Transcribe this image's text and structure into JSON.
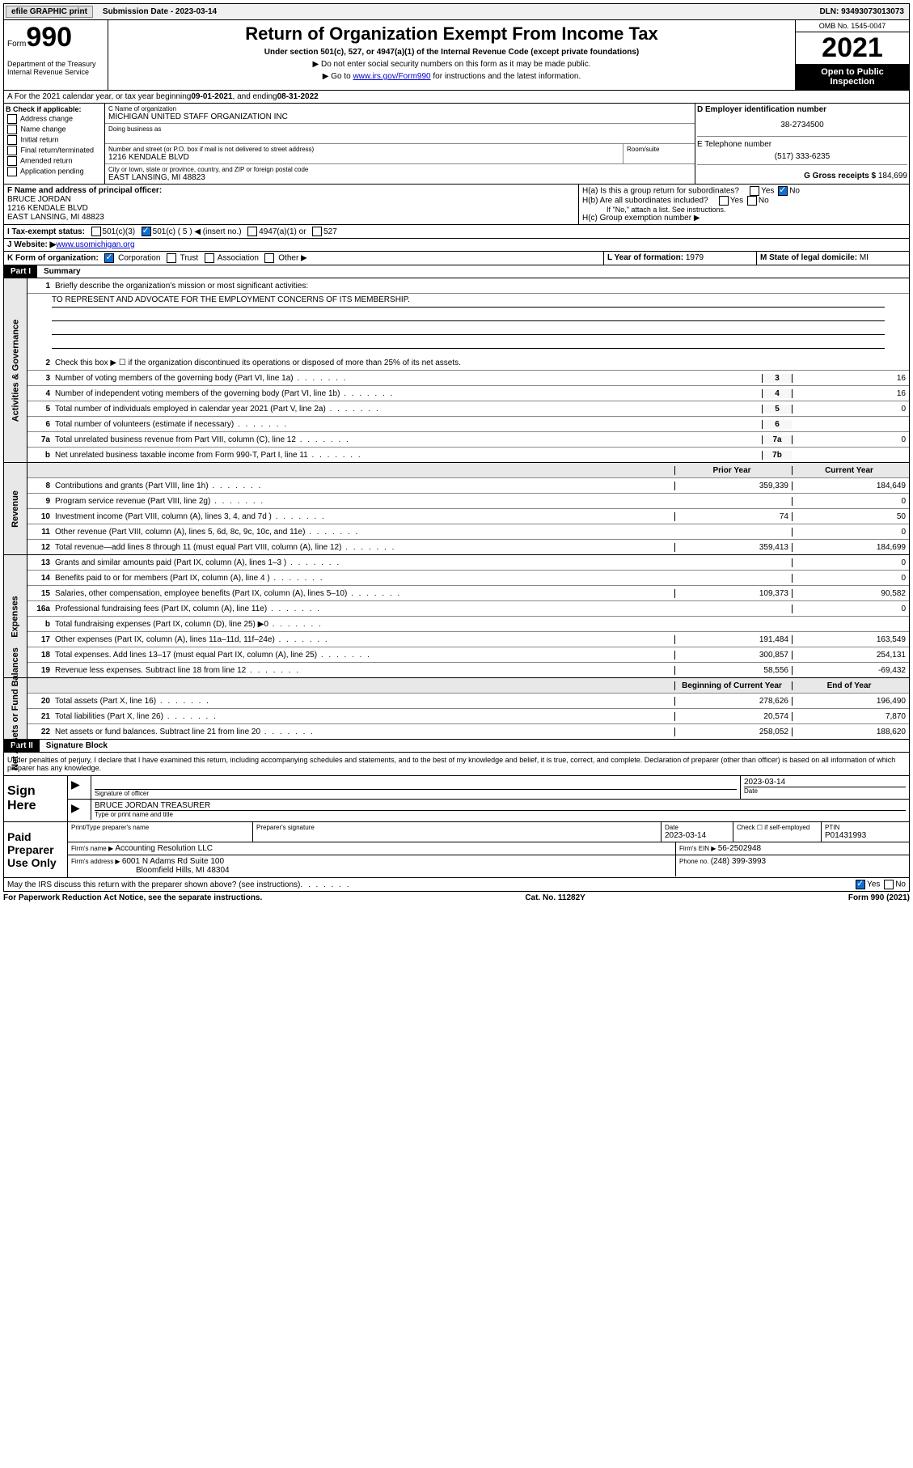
{
  "topbar": {
    "efile": "efile GRAPHIC print",
    "submission_label": "Submission Date - ",
    "submission_date": "2023-03-14",
    "dln_label": "DLN: ",
    "dln": "93493073013073"
  },
  "header": {
    "form_word": "Form",
    "form_num": "990",
    "dept": "Department of the Treasury\nInternal Revenue Service",
    "title": "Return of Organization Exempt From Income Tax",
    "sub1": "Under section 501(c), 527, or 4947(a)(1) of the Internal Revenue Code (except private foundations)",
    "sub2": "▶ Do not enter social security numbers on this form as it may be made public.",
    "sub3_pre": "▶ Go to ",
    "sub3_link": "www.irs.gov/Form990",
    "sub3_post": " for instructions and the latest information.",
    "omb": "OMB No. 1545-0047",
    "year": "2021",
    "open": "Open to Public Inspection"
  },
  "line_a": {
    "text_pre": "A For the 2021 calendar year, or tax year beginning ",
    "begin": "09-01-2021",
    "mid": " , and ending ",
    "end": "08-31-2022"
  },
  "box_b": {
    "header": "B Check if applicable:",
    "items": [
      "Address change",
      "Name change",
      "Initial return",
      "Final return/terminated",
      "Amended return",
      "Application pending"
    ]
  },
  "box_c": {
    "name_label": "C Name of organization",
    "name": "MICHIGAN UNITED STAFF ORGANIZATION INC",
    "dba_label": "Doing business as",
    "street_label": "Number and street (or P.O. box if mail is not delivered to street address)",
    "room_label": "Room/suite",
    "street": "1216 KENDALE BLVD",
    "city_label": "City or town, state or province, country, and ZIP or foreign postal code",
    "city": "EAST LANSING, MI  48823"
  },
  "box_de": {
    "d_label": "D Employer identification number",
    "ein": "38-2734500",
    "e_label": "E Telephone number",
    "phone": "(517) 333-6235",
    "g_label": "G Gross receipts $ ",
    "gross": "184,699"
  },
  "box_f": {
    "label": "F Name and address of principal officer:",
    "name": "BRUCE JORDAN",
    "street": "1216 KENDALE BLVD",
    "city": "EAST LANSING, MI  48823"
  },
  "box_h": {
    "ha": "H(a)  Is this a group return for subordinates?",
    "hb": "H(b)  Are all subordinates included?",
    "hb_note": "If \"No,\" attach a list. See instructions.",
    "hc": "H(c)  Group exemption number ▶"
  },
  "line_i": {
    "label": "I  Tax-exempt status:",
    "opts": [
      "501(c)(3)",
      "501(c) ( 5 ) ◀ (insert no.)",
      "4947(a)(1) or",
      "527"
    ]
  },
  "line_j": {
    "label": "J  Website: ▶ ",
    "url": "www.usomichigan.org"
  },
  "line_k": {
    "label": "K Form of organization:",
    "opts": [
      "Corporation",
      "Trust",
      "Association",
      "Other ▶"
    ]
  },
  "line_l": {
    "label": "L Year of formation: ",
    "val": "1979"
  },
  "line_m": {
    "label": "M State of legal domicile: ",
    "val": "MI"
  },
  "part1": {
    "header": "Part I",
    "title": "Summary",
    "q1": "Briefly describe the organization's mission or most significant activities:",
    "mission": "TO REPRESENT AND ADVOCATE FOR THE EMPLOYMENT CONCERNS OF ITS MEMBERSHIP.",
    "q2": "Check this box ▶ ☐  if the organization discontinued its operations or disposed of more than 25% of its net assets.",
    "lines_gov": [
      {
        "n": "3",
        "d": "Number of voting members of the governing body (Part VI, line 1a)",
        "bn": "3",
        "v": "16"
      },
      {
        "n": "4",
        "d": "Number of independent voting members of the governing body (Part VI, line 1b)",
        "bn": "4",
        "v": "16"
      },
      {
        "n": "5",
        "d": "Total number of individuals employed in calendar year 2021 (Part V, line 2a)",
        "bn": "5",
        "v": "0"
      },
      {
        "n": "6",
        "d": "Total number of volunteers (estimate if necessary)",
        "bn": "6",
        "v": ""
      },
      {
        "n": "7a",
        "d": "Total unrelated business revenue from Part VIII, column (C), line 12",
        "bn": "7a",
        "v": "0"
      },
      {
        "n": "b",
        "d": "Net unrelated business taxable income from Form 990-T, Part I, line 11",
        "bn": "7b",
        "v": ""
      }
    ],
    "col_hdr": {
      "n": "",
      "d": "",
      "prior": "Prior Year",
      "curr": "Current Year"
    },
    "lines_rev": [
      {
        "n": "8",
        "d": "Contributions and grants (Part VIII, line 1h)",
        "p": "359,339",
        "c": "184,649"
      },
      {
        "n": "9",
        "d": "Program service revenue (Part VIII, line 2g)",
        "p": "",
        "c": "0"
      },
      {
        "n": "10",
        "d": "Investment income (Part VIII, column (A), lines 3, 4, and 7d )",
        "p": "74",
        "c": "50"
      },
      {
        "n": "11",
        "d": "Other revenue (Part VIII, column (A), lines 5, 6d, 8c, 9c, 10c, and 11e)",
        "p": "",
        "c": "0"
      },
      {
        "n": "12",
        "d": "Total revenue—add lines 8 through 11 (must equal Part VIII, column (A), line 12)",
        "p": "359,413",
        "c": "184,699"
      }
    ],
    "lines_exp": [
      {
        "n": "13",
        "d": "Grants and similar amounts paid (Part IX, column (A), lines 1–3 )",
        "p": "",
        "c": "0"
      },
      {
        "n": "14",
        "d": "Benefits paid to or for members (Part IX, column (A), line 4 )",
        "p": "",
        "c": "0"
      },
      {
        "n": "15",
        "d": "Salaries, other compensation, employee benefits (Part IX, column (A), lines 5–10)",
        "p": "109,373",
        "c": "90,582"
      },
      {
        "n": "16a",
        "d": "Professional fundraising fees (Part IX, column (A), line 11e)",
        "p": "",
        "c": "0"
      },
      {
        "n": "b",
        "d": "Total fundraising expenses (Part IX, column (D), line 25) ▶0",
        "p": "GRAY",
        "c": "GRAY"
      },
      {
        "n": "17",
        "d": "Other expenses (Part IX, column (A), lines 11a–11d, 11f–24e)",
        "p": "191,484",
        "c": "163,549"
      },
      {
        "n": "18",
        "d": "Total expenses. Add lines 13–17 (must equal Part IX, column (A), line 25)",
        "p": "300,857",
        "c": "254,131"
      },
      {
        "n": "19",
        "d": "Revenue less expenses. Subtract line 18 from line 12",
        "p": "58,556",
        "c": "-69,432"
      }
    ],
    "col_hdr2": {
      "prior": "Beginning of Current Year",
      "curr": "End of Year"
    },
    "lines_net": [
      {
        "n": "20",
        "d": "Total assets (Part X, line 16)",
        "p": "278,626",
        "c": "196,490"
      },
      {
        "n": "21",
        "d": "Total liabilities (Part X, line 26)",
        "p": "20,574",
        "c": "7,870"
      },
      {
        "n": "22",
        "d": "Net assets or fund balances. Subtract line 21 from line 20",
        "p": "258,052",
        "c": "188,620"
      }
    ],
    "tabs": {
      "gov": "Activities & Governance",
      "rev": "Revenue",
      "exp": "Expenses",
      "net": "Net Assets or Fund Balances"
    }
  },
  "part2": {
    "header": "Part II",
    "title": "Signature Block",
    "decl": "Under penalties of perjury, I declare that I have examined this return, including accompanying schedules and statements, and to the best of my knowledge and belief, it is true, correct, and complete. Declaration of preparer (other than officer) is based on all information of which preparer has any knowledge.",
    "sign_here": "Sign Here",
    "sig_officer": "Signature of officer",
    "sig_date": "2023-03-14",
    "date_label": "Date",
    "officer_name": "BRUCE JORDAN TREASURER",
    "type_name": "Type or print name and title",
    "paid": "Paid Preparer Use Only",
    "prep_name_label": "Print/Type preparer's name",
    "prep_sig_label": "Preparer's signature",
    "prep_date": "2023-03-14",
    "check_self": "Check ☐ if self-employed",
    "ptin_label": "PTIN",
    "ptin": "P01431993",
    "firm_name_label": "Firm's name   ▶ ",
    "firm_name": "Accounting Resolution LLC",
    "firm_ein_label": "Firm's EIN ▶ ",
    "firm_ein": "56-2502948",
    "firm_addr_label": "Firm's address ▶ ",
    "firm_addr1": "6001 N Adams Rd Suite 100",
    "firm_addr2": "Bloomfield Hills, MI  48304",
    "phone_label": "Phone no. ",
    "phone": "(248) 399-3993",
    "may_irs": "May the IRS discuss this return with the preparer shown above? (see instructions)"
  },
  "footer": {
    "left": "For Paperwork Reduction Act Notice, see the separate instructions.",
    "mid": "Cat. No. 11282Y",
    "right": "Form 990 (2021)"
  }
}
